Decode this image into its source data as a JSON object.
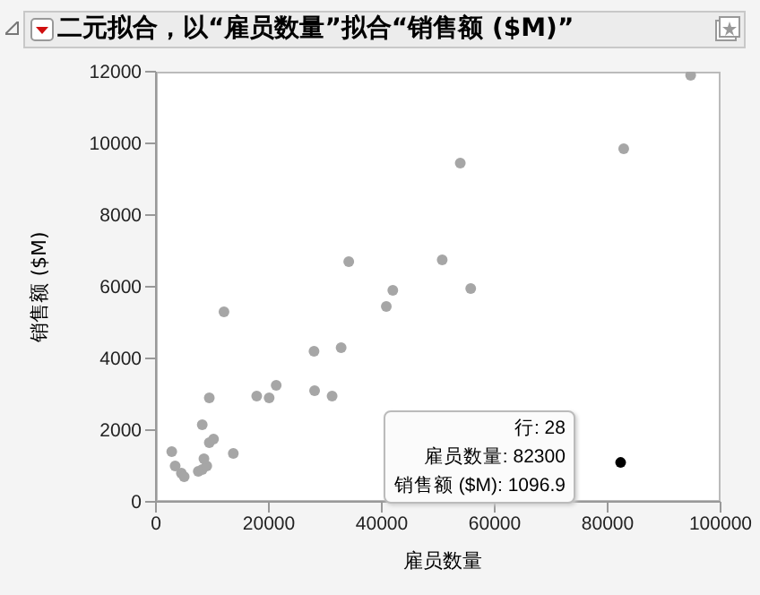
{
  "chart_data": {
    "type": "scatter",
    "title": "二元拟合，以“雇员数量”拟合“销售额 ($M)”",
    "xlabel": "雇员数量",
    "ylabel": "销售额 ($M)",
    "annotations": [
      "行: 28",
      "雇员数量: 82300",
      "销售额 ($M): 1096.9"
    ],
    "series": [
      {
        "color": "#a6a6a6",
        "x": [
          2800,
          3400,
          4500,
          5000,
          7500,
          8200,
          9000,
          8500,
          8200,
          9450,
          10200,
          9450,
          12050,
          13700,
          17850,
          20050,
          21300,
          28000,
          28100,
          31200,
          32800,
          34150,
          40800,
          41950,
          50700,
          53900,
          55750,
          82850,
          94700
        ],
        "values": [
          1400,
          1000,
          800,
          700,
          850,
          900,
          1000,
          1200,
          2150,
          1650,
          1750,
          2900,
          5300,
          1350,
          2950,
          2900,
          3250,
          4200,
          3100,
          2950,
          4300,
          6700,
          5450,
          5900,
          6750,
          9450,
          5950,
          9850,
          11900
        ]
      },
      {
        "color": "#000000",
        "x": [
          82300
        ],
        "values": [
          1096.9
        ]
      }
    ],
    "xlim": [
      0,
      100000
    ],
    "xticks": [
      0,
      20000,
      40000,
      60000,
      80000,
      100000
    ],
    "ylim": [
      0,
      12000
    ],
    "yticks": [
      0,
      2000,
      4000,
      6000,
      8000,
      10000,
      12000
    ],
    "marker": "circle",
    "grid": false,
    "legend": false
  }
}
